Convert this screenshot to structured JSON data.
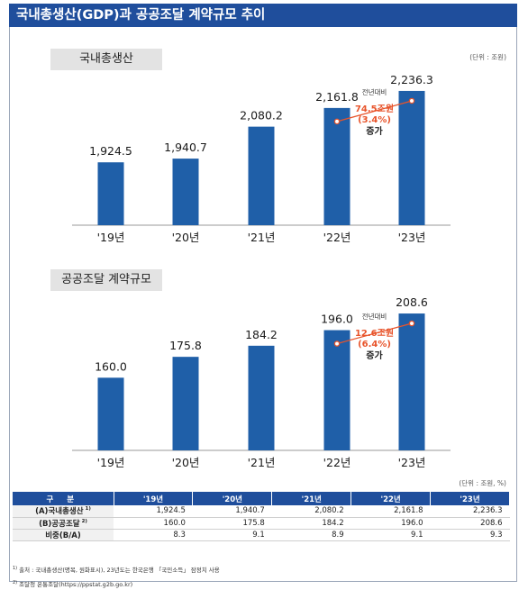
{
  "title": "국내총생산(GDP)과 공공조달 계약규모 추이",
  "unit_top": "(단위 : 조원)",
  "unit_table": "(단위 : 조원, %)",
  "chart_data": [
    {
      "type": "bar",
      "title": "국내총생산",
      "categories": [
        "'19년",
        "'20년",
        "'21년",
        "'22년",
        "'23년"
      ],
      "values": [
        1924.5,
        1940.7,
        2080.2,
        2161.8,
        2236.3
      ],
      "value_labels": [
        "1,924.5",
        "1,940.7",
        "2,080.2",
        "2,161.8",
        "2,236.3"
      ],
      "ylim": [
        1650,
        2240
      ],
      "bar_color": "#1f5fa8",
      "annotation": {
        "from": "'22년",
        "to": "'23년",
        "caption": "전년대비",
        "amount": "74.5조원",
        "pct": "(3.4%)",
        "word": "증가",
        "color": "#e8542b"
      }
    },
    {
      "type": "bar",
      "title": "공공조달 계약규모",
      "categories": [
        "'19년",
        "'20년",
        "'21년",
        "'22년",
        "'23년"
      ],
      "values": [
        160.0,
        175.8,
        184.2,
        196.0,
        208.6
      ],
      "value_labels": [
        "160.0",
        "175.8",
        "184.2",
        "196.0",
        "208.6"
      ],
      "ylim": [
        105,
        210
      ],
      "bar_color": "#1f5fa8",
      "annotation": {
        "from": "'22년",
        "to": "'23년",
        "caption": "전년대비",
        "amount": "12.6조원",
        "pct": "(6.4%)",
        "word": "증가",
        "color": "#e8542b"
      }
    }
  ],
  "table": {
    "headers": [
      "구 분",
      "'19년",
      "'20년",
      "'21년",
      "'22년",
      "'23년"
    ],
    "rows": [
      {
        "label": "(A)국내총생산",
        "sup": "1)",
        "values": [
          "1,924.5",
          "1,940.7",
          "2,080.2",
          "2,161.8",
          "2,236.3"
        ]
      },
      {
        "label": "(B)공공조달",
        "sup": "2)",
        "values": [
          "160.0",
          "175.8",
          "184.2",
          "196.0",
          "208.6"
        ]
      },
      {
        "label": "비중(B/A)",
        "sup": "",
        "values": [
          "8.3",
          "9.1",
          "8.9",
          "9.1",
          "9.3"
        ]
      }
    ]
  },
  "footnotes": [
    {
      "mark": "1)",
      "text": "출처 : 국내총생산(명목, 원화표시), 23년도는 한국은행 「국민소득」 잠정치 사용"
    },
    {
      "mark": "2)",
      "text": "조달청 온통조달(https://ppstat.g2b.go.kr)"
    }
  ]
}
